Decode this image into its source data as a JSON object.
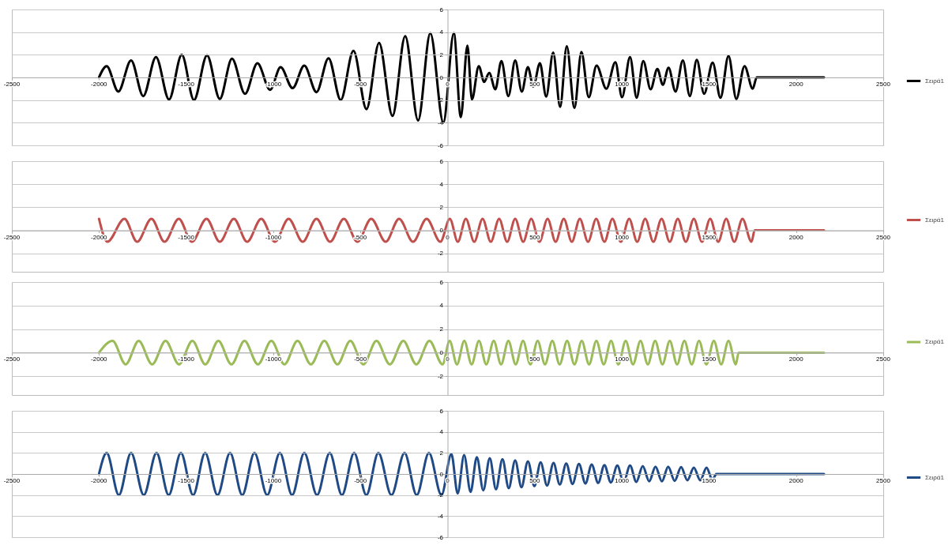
{
  "chart_data": [
    {
      "type": "line",
      "xlim": [
        -2500,
        2500
      ],
      "xticks": [
        -2500,
        -2000,
        -1500,
        -1000,
        -500,
        0,
        500,
        1000,
        1500,
        2000,
        2500
      ],
      "ylim": [
        -6,
        6
      ],
      "yticks": [
        -6,
        -4,
        -2,
        0,
        2,
        4,
        6
      ],
      "grid": "y",
      "legend": "right",
      "series": [
        {
          "name": "Σειρά1",
          "color": "#000000",
          "x": [
            -2000,
            -1956,
            -1889,
            -1816,
            -1746,
            -1673,
            -1598,
            -1525,
            -1455,
            -1380,
            -1307,
            -1237,
            -1162,
            -1091,
            -1018,
            -958,
            -889,
            -822,
            -752,
            -683,
            -613,
            -540,
            -465,
            -393,
            -316,
            -243,
            -169,
            -99,
            -24,
            36,
            76,
            114,
            140,
            179,
            210,
            239,
            274,
            309,
            349,
            388,
            426,
            461,
            492,
            530,
            566,
            606,
            646,
            684,
            728,
            768,
            810,
            855,
            911,
            963,
            1001,
            1047,
            1085,
            1123,
            1165,
            1204,
            1235,
            1268,
            1308,
            1350,
            1390,
            1430,
            1472,
            1521,
            1566,
            1612,
            1657,
            1704,
            1751,
            1774,
            2160
          ],
          "values": [
            0,
            1,
            -1.25,
            1.5,
            -1.65,
            1.8,
            -1.95,
            2,
            -2,
            1.95,
            -1.9,
            1.65,
            -1.45,
            1.25,
            -1.1,
            0.9,
            -0.95,
            1.05,
            -1.3,
            1.7,
            -2,
            2.35,
            -2.8,
            3.05,
            -3.4,
            3.65,
            -3.8,
            3.9,
            -4,
            3.9,
            -3.5,
            2.8,
            -1.95,
            1,
            -0.4,
            0.4,
            -1.05,
            1.45,
            -1.65,
            1.5,
            -1.25,
            0.9,
            -0.8,
            1.25,
            -1.7,
            2.2,
            -2.6,
            2.75,
            -2.7,
            2.25,
            -1.75,
            1.05,
            -1,
            1.35,
            -1.75,
            1.8,
            -1.8,
            1.45,
            -1.05,
            0.75,
            -0.65,
            0.85,
            -1.25,
            1.5,
            -1.65,
            1.55,
            -1.45,
            1.3,
            -1.8,
            1.9,
            -1.9,
            1,
            -1,
            0,
            0
          ]
        }
      ]
    },
    {
      "type": "line",
      "xlim": [
        -2500,
        2500
      ],
      "xticks": [
        -2500,
        -2000,
        -1500,
        -1000,
        -500,
        0,
        500,
        1000,
        1500,
        2000,
        2500
      ],
      "ylim": [
        -3.6,
        6
      ],
      "yticks": [
        -2,
        0,
        2,
        4,
        6
      ],
      "grid": "y",
      "legend": "right",
      "series": [
        {
          "name": "Σειρά1",
          "color": "#c0504d",
          "x": [
            -2000,
            -1952,
            -1854,
            -1781,
            -1699,
            -1624,
            -1542,
            -1467,
            -1383,
            -1307,
            -1226,
            -1150,
            -1069,
            -991,
            -912,
            -831,
            -752,
            -674,
            -595,
            -517,
            -438,
            -355,
            -278,
            -198,
            -120,
            -41,
            13,
            59,
            105,
            153,
            201,
            248,
            296,
            342,
            388,
            434,
            480,
            527,
            574,
            620,
            667,
            713,
            759,
            806,
            853,
            900,
            946,
            994,
            1042,
            1088,
            1134,
            1181,
            1228,
            1275,
            1321,
            1367,
            1413,
            1460,
            1507,
            1553,
            1599,
            1645,
            1692,
            1744,
            1762,
            2160
          ],
          "values": [
            1,
            -1,
            1,
            -1,
            1,
            -1,
            1,
            -1,
            1,
            -1,
            1,
            -1,
            1,
            -1,
            1,
            -1,
            1,
            -1,
            1,
            -1,
            1,
            -1,
            1,
            -1,
            1,
            -1,
            1,
            -1,
            1,
            -1,
            1,
            -1,
            1,
            -1,
            1,
            -1,
            1,
            -1,
            1,
            -1,
            1,
            -1,
            1,
            -1,
            1,
            -1,
            1,
            -1,
            1,
            -1,
            1,
            -1,
            1,
            -1,
            1,
            -1,
            1,
            -1,
            1,
            -1,
            1,
            -1,
            1,
            -1,
            0,
            0
          ]
        }
      ]
    },
    {
      "type": "line",
      "xlim": [
        -2500,
        2500
      ],
      "xticks": [
        -2500,
        -2000,
        -1500,
        -1000,
        -500,
        0,
        500,
        1000,
        1500,
        2000,
        2500
      ],
      "ylim": [
        -3.6,
        6
      ],
      "yticks": [
        -2,
        0,
        2,
        4,
        6
      ],
      "grid": "y",
      "legend": "right",
      "series": [
        {
          "name": "Σειρά1",
          "color": "#9bbb59",
          "x": [
            -2000,
            -1922,
            -1847,
            -1772,
            -1695,
            -1618,
            -1541,
            -1464,
            -1390,
            -1315,
            -1240,
            -1165,
            -1088,
            -1011,
            -936,
            -861,
            -784,
            -707,
            -632,
            -558,
            -483,
            -408,
            -331,
            -254,
            -179,
            -104,
            -29,
            12,
            54,
            96,
            138,
            180,
            222,
            265,
            307,
            349,
            391,
            433,
            475,
            517,
            559,
            601,
            643,
            686,
            728,
            770,
            812,
            854,
            896,
            938,
            980,
            1022,
            1064,
            1107,
            1149,
            1191,
            1233,
            1275,
            1317,
            1359,
            1401,
            1443,
            1485,
            1528,
            1570,
            1612,
            1654,
            1670,
            2160
          ],
          "values": [
            0,
            1,
            -1,
            1,
            -1,
            1,
            -1,
            1,
            -1,
            1,
            -1,
            1,
            -1,
            1,
            -1,
            1,
            -1,
            1,
            -1,
            1,
            -1,
            1,
            -1,
            1,
            -1,
            1,
            -1,
            1,
            -1,
            1,
            -1,
            1,
            -1,
            1,
            -1,
            1,
            -1,
            1,
            -1,
            1,
            -1,
            1,
            -1,
            1,
            -1,
            1,
            -1,
            1,
            -1,
            1,
            -1,
            1,
            -1,
            1,
            -1,
            1,
            -1,
            1,
            -1,
            1,
            -1,
            1,
            -1,
            1,
            -1,
            1,
            -1,
            0,
            0
          ]
        }
      ]
    },
    {
      "type": "line",
      "xlim": [
        -2500,
        2500
      ],
      "xticks": [
        -2500,
        -2000,
        -1500,
        -1000,
        -500,
        0,
        500,
        1000,
        1500,
        2000,
        2500
      ],
      "ylim": [
        -6,
        6
      ],
      "yticks": [
        -6,
        -4,
        -2,
        0,
        2,
        4,
        6
      ],
      "grid": "y",
      "legend": "right",
      "series": [
        {
          "name": "Σειρά1",
          "color": "#1f4a85",
          "x": [
            -2000,
            -1956,
            -1886,
            -1816,
            -1743,
            -1670,
            -1600,
            -1530,
            -1460,
            -1391,
            -1320,
            -1248,
            -1178,
            -1108,
            -1035,
            -962,
            -892,
            -822,
            -749,
            -676,
            -606,
            -536,
            -466,
            -397,
            -322,
            -247,
            -177,
            -107,
            -35,
            22,
            58,
            95,
            132,
            168,
            205,
            242,
            278,
            315,
            351,
            388,
            424,
            461,
            498,
            534,
            571,
            608,
            644,
            681,
            717,
            754,
            791,
            827,
            864,
            900,
            937,
            974,
            1010,
            1047,
            1083,
            1120,
            1157,
            1193,
            1230,
            1266,
            1303,
            1340,
            1376,
            1413,
            1450,
            1486,
            1520,
            1542,
            2160
          ],
          "values": [
            0,
            2,
            -2,
            2,
            -2,
            2,
            -2,
            2,
            -2,
            2,
            -2,
            2,
            -2,
            2,
            -2,
            2,
            -2,
            2,
            -2,
            2,
            -2,
            2,
            -2,
            2,
            -2,
            2,
            -2,
            2,
            -2,
            1.9,
            -1.85,
            1.8,
            -1.7,
            1.6,
            -1.55,
            1.5,
            -1.45,
            1.4,
            -1.35,
            1.3,
            -1.25,
            1.2,
            -1.15,
            1.1,
            -1.1,
            1.05,
            -1,
            1,
            -0.95,
            0.95,
            -0.9,
            0.9,
            -0.85,
            0.85,
            -0.8,
            0.8,
            -0.8,
            0.8,
            -0.75,
            0.75,
            -0.7,
            0.7,
            -0.7,
            0.7,
            -0.65,
            0.65,
            -0.6,
            0.6,
            -0.6,
            0.6,
            -0.55,
            0,
            0
          ]
        }
      ]
    }
  ]
}
